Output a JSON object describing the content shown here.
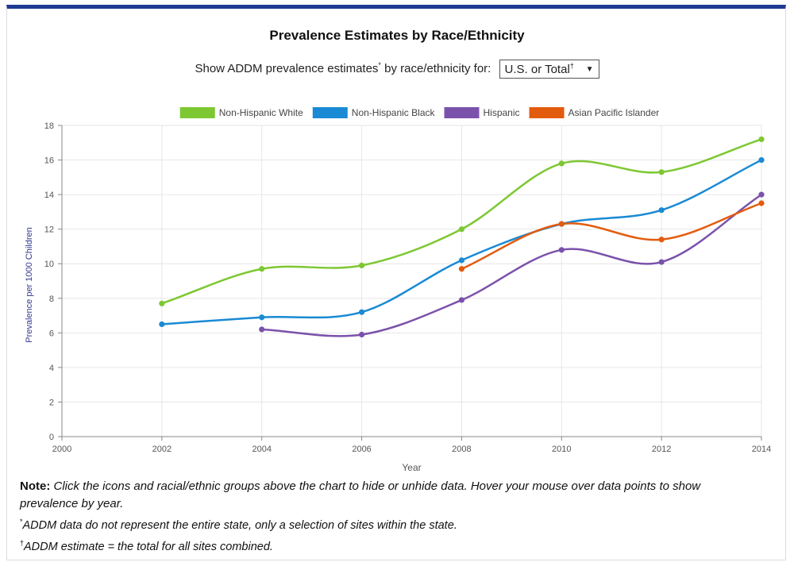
{
  "header": {
    "title": "Prevalence Estimates by Race/Ethnicity",
    "selector_prompt": "Show ADDM prevalence estimates",
    "selector_prompt_mark": "*",
    "selector_prompt_suffix": " by race/ethnicity for:",
    "selector_value": "U.S. or Total",
    "selector_value_mark": "†"
  },
  "chart_data": {
    "type": "line",
    "xlabel": "Year",
    "ylabel": "Prevalence per 1000 Children",
    "xlim": [
      2000,
      2014
    ],
    "ylim": [
      0,
      18
    ],
    "x_ticks": [
      "2000",
      "2002",
      "2004",
      "2006",
      "2008",
      "2010",
      "2012",
      "2014"
    ],
    "y_ticks": [
      "0",
      "2",
      "4",
      "6",
      "8",
      "10",
      "12",
      "14",
      "16",
      "18"
    ],
    "grid": true,
    "legend_position": "top",
    "smooth": true,
    "series": [
      {
        "name": "Non-Hispanic White",
        "color": "#7dc832",
        "points": [
          [
            2002,
            7.7
          ],
          [
            2004,
            9.7
          ],
          [
            2006,
            9.9
          ],
          [
            2008,
            12.0
          ],
          [
            2010,
            15.8
          ],
          [
            2012,
            15.3
          ],
          [
            2014,
            17.2
          ]
        ]
      },
      {
        "name": "Non-Hispanic Black",
        "color": "#1a8ad4",
        "points": [
          [
            2002,
            6.5
          ],
          [
            2004,
            6.9
          ],
          [
            2006,
            7.2
          ],
          [
            2008,
            10.2
          ],
          [
            2010,
            12.3
          ],
          [
            2012,
            13.1
          ],
          [
            2014,
            16.0
          ]
        ]
      },
      {
        "name": "Hispanic",
        "color": "#7b52ab",
        "points": [
          [
            2004,
            6.2
          ],
          [
            2006,
            5.9
          ],
          [
            2008,
            7.9
          ],
          [
            2010,
            10.8
          ],
          [
            2012,
            10.1
          ],
          [
            2014,
            14.0
          ]
        ]
      },
      {
        "name": "Asian Pacific Islander",
        "color": "#e35b0e",
        "points": [
          [
            2008,
            9.7
          ],
          [
            2010,
            12.3
          ],
          [
            2012,
            11.4
          ],
          [
            2014,
            13.5
          ]
        ]
      }
    ]
  },
  "notes": {
    "note_label": "Note:",
    "note_text": " Click the icons and racial/ethnic groups above the chart to hide or unhide data. Hover your mouse over data points to show prevalence by year.",
    "footnote1_mark": "*",
    "footnote1": "ADDM data do not represent the entire state, only a selection of sites within the state.",
    "footnote2_mark": "†",
    "footnote2": "ADDM estimate = the total for all sites combined."
  }
}
